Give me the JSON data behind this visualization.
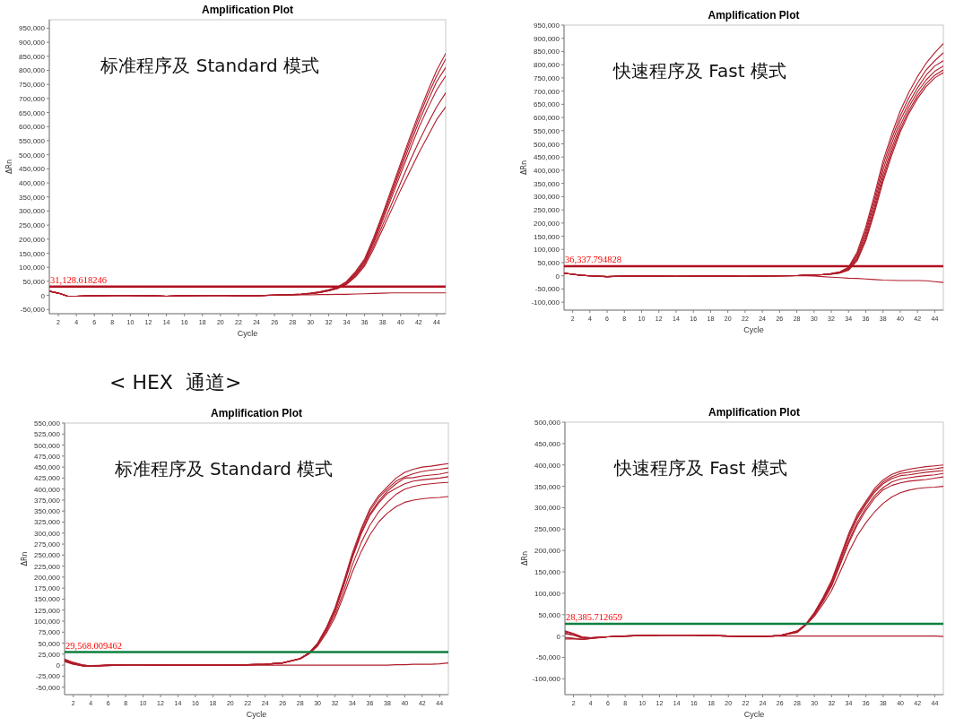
{
  "chart_data": [
    {
      "type": "line",
      "title": "Amplification Plot",
      "xlabel": "Cycle",
      "ylabel": "ΔRn",
      "annotations": [
        "标准程序及 Standard 模式"
      ],
      "xlim": [
        1,
        45
      ],
      "ylim": [
        -65000,
        980000
      ],
      "xticks": [
        2,
        4,
        6,
        8,
        10,
        12,
        14,
        16,
        18,
        20,
        22,
        24,
        26,
        28,
        30,
        32,
        34,
        36,
        38,
        40,
        42,
        44
      ],
      "yticks": [
        {
          "value": -50000,
          "label": "-50,000"
        },
        {
          "value": 0,
          "label": "0"
        },
        {
          "value": 50000,
          "label": "50,000"
        },
        {
          "value": 100000,
          "label": "100,000"
        },
        {
          "value": 150000,
          "label": "150,000"
        },
        {
          "value": 200000,
          "label": "200,000"
        },
        {
          "value": 250000,
          "label": "250,000"
        },
        {
          "value": 300000,
          "label": "300,000"
        },
        {
          "value": 350000,
          "label": "350,000"
        },
        {
          "value": 400000,
          "label": "400,000"
        },
        {
          "value": 450000,
          "label": "450,000"
        },
        {
          "value": 500000,
          "label": "500,000"
        },
        {
          "value": 550000,
          "label": "550,000"
        },
        {
          "value": 600000,
          "label": "600,000"
        },
        {
          "value": 650000,
          "label": "650,000"
        },
        {
          "value": 700000,
          "label": "700,000"
        },
        {
          "value": 750000,
          "label": "750,000"
        },
        {
          "value": 800000,
          "label": "800,000"
        },
        {
          "value": 850000,
          "label": "850,000"
        },
        {
          "value": 900000,
          "label": "900,000"
        },
        {
          "value": 950000,
          "label": "950,000"
        }
      ],
      "ref_lines": [
        {
          "axis": "y",
          "value": 31128.618246,
          "label": "31,128.618246",
          "color": "#b01020"
        }
      ],
      "x": [
        1,
        2,
        3,
        4,
        6,
        8,
        10,
        12,
        14,
        16,
        18,
        20,
        22,
        24,
        26,
        28,
        29,
        30,
        31,
        32,
        33,
        34,
        35,
        36,
        37,
        38,
        39,
        40,
        41,
        42,
        43,
        44,
        45
      ],
      "series": [
        {
          "color": "#b01c2a",
          "values": [
            15000,
            8000,
            -2000,
            -3000,
            -1000,
            0,
            0,
            -1000,
            -3000,
            -1000,
            0,
            0,
            -1000,
            -1000,
            1000,
            3000,
            5000,
            8000,
            13000,
            20000,
            30000,
            50000,
            85000,
            130000,
            205000,
            290000,
            380000,
            470000,
            560000,
            645000,
            725000,
            800000,
            860000
          ]
        },
        {
          "color": "#b01c2a",
          "values": [
            15000,
            8000,
            -2000,
            -3000,
            -1000,
            0,
            0,
            -1000,
            -3000,
            -1000,
            0,
            0,
            -1000,
            -1000,
            1000,
            3000,
            5000,
            8000,
            12000,
            19000,
            28000,
            47000,
            80000,
            125000,
            198000,
            283000,
            370000,
            460000,
            548000,
            632000,
            710000,
            780000,
            840000
          ]
        },
        {
          "color": "#b01c2a",
          "values": [
            15000,
            8000,
            -2000,
            -3000,
            -1000,
            0,
            0,
            -1000,
            -3000,
            -1000,
            0,
            0,
            -1000,
            -1000,
            1000,
            3000,
            4000,
            7000,
            11000,
            18000,
            27000,
            45000,
            77000,
            120000,
            192000,
            275000,
            360000,
            447000,
            533000,
            615000,
            690000,
            760000,
            810000
          ]
        },
        {
          "color": "#b01c2a",
          "values": [
            15000,
            8000,
            -2000,
            -3000,
            -1000,
            0,
            0,
            -1000,
            -3000,
            -1000,
            0,
            0,
            -1000,
            -1000,
            1000,
            3000,
            4000,
            7000,
            11000,
            17000,
            26000,
            43000,
            74000,
            115000,
            185000,
            265000,
            348000,
            432000,
            515000,
            595000,
            665000,
            730000,
            780000
          ]
        },
        {
          "color": "#b01c2a",
          "values": [
            15000,
            8000,
            -2000,
            -3000,
            -1000,
            0,
            0,
            -1000,
            -3000,
            -1000,
            0,
            0,
            -1000,
            -1000,
            1000,
            3000,
            4000,
            6000,
            10000,
            16000,
            25000,
            41000,
            70000,
            110000,
            175000,
            250000,
            325000,
            400000,
            475000,
            545000,
            610000,
            670000,
            720000
          ]
        },
        {
          "color": "#b01c2a",
          "values": [
            15000,
            8000,
            -2000,
            -3000,
            -1000,
            0,
            0,
            -1000,
            -3000,
            -1000,
            0,
            0,
            -1000,
            -1000,
            1000,
            3000,
            4000,
            6000,
            10000,
            16000,
            24000,
            39000,
            66000,
            104000,
            165000,
            235000,
            305000,
            375000,
            440000,
            505000,
            565000,
            625000,
            670000
          ]
        },
        {
          "color": "#b01c2a",
          "values": [
            15000,
            8000,
            -2000,
            -3000,
            -1000,
            0,
            0,
            -1000,
            -3000,
            -1000,
            0,
            0,
            -1000,
            -1000,
            1000,
            1000,
            2000,
            2000,
            3000,
            3000,
            4000,
            4000,
            5000,
            6000,
            7000,
            8000,
            9000,
            9000,
            9000,
            9000,
            9000,
            9000,
            9000
          ]
        }
      ]
    },
    {
      "type": "line",
      "title": "Amplification Plot",
      "xlabel": "Cycle",
      "ylabel": "ΔRn",
      "annotations": [
        "快速程序及 Fast 模式"
      ],
      "xlim": [
        1,
        45
      ],
      "ylim": [
        -130000,
        950000
      ],
      "xticks": [
        2,
        4,
        6,
        8,
        10,
        12,
        14,
        16,
        18,
        20,
        22,
        24,
        26,
        28,
        30,
        32,
        34,
        36,
        38,
        40,
        42,
        44
      ],
      "yticks": [
        {
          "value": -100000,
          "label": "-100,000"
        },
        {
          "value": -50000,
          "label": "-50,000"
        },
        {
          "value": 0,
          "label": "0"
        },
        {
          "value": 50000,
          "label": "50,000"
        },
        {
          "value": 100000,
          "label": "100,000"
        },
        {
          "value": 150000,
          "label": "150,000"
        },
        {
          "value": 200000,
          "label": "200,000"
        },
        {
          "value": 250000,
          "label": "250,000"
        },
        {
          "value": 300000,
          "label": "300,000"
        },
        {
          "value": 350000,
          "label": "350,000"
        },
        {
          "value": 400000,
          "label": "400,000"
        },
        {
          "value": 450000,
          "label": "450,000"
        },
        {
          "value": 500000,
          "label": "500,000"
        },
        {
          "value": 550000,
          "label": "550,000"
        },
        {
          "value": 600000,
          "label": "600,000"
        },
        {
          "value": 650000,
          "label": "650,000"
        },
        {
          "value": 700000,
          "label": "700,000"
        },
        {
          "value": 750000,
          "label": "750,000"
        },
        {
          "value": 800000,
          "label": "800,000"
        },
        {
          "value": 850000,
          "label": "850,000"
        },
        {
          "value": 900000,
          "label": "900,000"
        },
        {
          "value": 950000,
          "label": "950,000"
        }
      ],
      "ref_lines": [
        {
          "axis": "y",
          "value": 36337.794828,
          "label": "36,337.794828",
          "color": "#b01020"
        }
      ],
      "x": [
        1,
        2,
        3,
        4,
        6,
        8,
        10,
        12,
        14,
        16,
        18,
        20,
        22,
        24,
        26,
        28,
        29,
        30,
        31,
        32,
        33,
        34,
        35,
        36,
        37,
        38,
        39,
        40,
        41,
        42,
        43,
        44,
        45
      ],
      "series": [
        {
          "color": "#b01c2a",
          "values": [
            10000,
            6000,
            2000,
            0,
            -3000,
            -1000,
            0,
            -1000,
            -2000,
            -1000,
            0,
            -1000,
            -2000,
            -1000,
            0,
            1000,
            2000,
            3000,
            5000,
            9000,
            15000,
            33000,
            90000,
            185000,
            305000,
            435000,
            535000,
            625000,
            695000,
            755000,
            805000,
            845000,
            880000
          ]
        },
        {
          "color": "#b01c2a",
          "values": [
            10000,
            6000,
            2000,
            0,
            -3000,
            -1000,
            0,
            -1000,
            -2000,
            -1000,
            0,
            -1000,
            -2000,
            -1000,
            0,
            1000,
            2000,
            3000,
            5000,
            8000,
            14000,
            30000,
            82000,
            172000,
            290000,
            418000,
            518000,
            605000,
            675000,
            730000,
            780000,
            815000,
            845000
          ]
        },
        {
          "color": "#b01c2a",
          "values": [
            10000,
            6000,
            2000,
            0,
            -3000,
            -1000,
            0,
            -1000,
            -2000,
            -1000,
            0,
            -1000,
            -2000,
            -1000,
            0,
            1000,
            2000,
            3000,
            5000,
            8000,
            13000,
            28000,
            76000,
            162000,
            275000,
            400000,
            500000,
            588000,
            655000,
            712000,
            760000,
            795000,
            815000
          ]
        },
        {
          "color": "#b01c2a",
          "values": [
            10000,
            6000,
            2000,
            0,
            -3000,
            -1000,
            0,
            -1000,
            -2000,
            -1000,
            0,
            -1000,
            -2000,
            -1000,
            0,
            1000,
            2000,
            3000,
            4000,
            7000,
            12000,
            25000,
            68000,
            150000,
            260000,
            382000,
            482000,
            570000,
            640000,
            697000,
            742000,
            775000,
            795000
          ]
        },
        {
          "color": "#b01c2a",
          "values": [
            10000,
            6000,
            2000,
            0,
            -3000,
            -1000,
            0,
            -1000,
            -2000,
            -1000,
            0,
            -1000,
            -2000,
            -1000,
            0,
            1000,
            2000,
            3000,
            4000,
            7000,
            11000,
            23000,
            62000,
            140000,
            248000,
            368000,
            468000,
            556000,
            626000,
            683000,
            728000,
            760000,
            780000
          ]
        },
        {
          "color": "#b01c2a",
          "values": [
            10000,
            6000,
            2000,
            0,
            -3000,
            -1000,
            0,
            -1000,
            -2000,
            -1000,
            0,
            -1000,
            -2000,
            -1000,
            0,
            1000,
            2000,
            3000,
            4000,
            6000,
            10000,
            21000,
            57000,
            132000,
            238000,
            356000,
            456000,
            545000,
            615000,
            672000,
            717000,
            750000,
            770000
          ]
        },
        {
          "color": "#b01c2a",
          "values": [
            10000,
            6000,
            2000,
            0,
            -3000,
            -1000,
            0,
            -1000,
            -2000,
            -1000,
            0,
            -1000,
            -2000,
            -1000,
            0,
            1000,
            0,
            -1000,
            -3000,
            -5000,
            -7000,
            -9000,
            -10000,
            -12000,
            -14000,
            -16000,
            -17000,
            -18000,
            -18000,
            -18000,
            -19000,
            -22000,
            -25000
          ]
        }
      ]
    },
    {
      "type": "line",
      "title": "Amplification Plot",
      "xlabel": "Cycle",
      "ylabel": "ΔRn",
      "annotations": [
        "标准程序及 Standard 模式",
        "< HEX  通道>"
      ],
      "xlim": [
        1,
        45
      ],
      "ylim": [
        -67000,
        550000
      ],
      "xticks": [
        2,
        4,
        6,
        8,
        10,
        12,
        14,
        16,
        18,
        20,
        22,
        24,
        26,
        28,
        30,
        32,
        34,
        36,
        38,
        40,
        42,
        44
      ],
      "yticks": [
        {
          "value": -50000,
          "label": "-50,000"
        },
        {
          "value": -25000,
          "label": "-25,000"
        },
        {
          "value": 0,
          "label": "0"
        },
        {
          "value": 25000,
          "label": "25,000"
        },
        {
          "value": 50000,
          "label": "50,000"
        },
        {
          "value": 75000,
          "label": "75,000"
        },
        {
          "value": 100000,
          "label": "100,000"
        },
        {
          "value": 125000,
          "label": "125,000"
        },
        {
          "value": 150000,
          "label": "150,000"
        },
        {
          "value": 175000,
          "label": "175,000"
        },
        {
          "value": 200000,
          "label": "200,000"
        },
        {
          "value": 225000,
          "label": "225,000"
        },
        {
          "value": 250000,
          "label": "250,000"
        },
        {
          "value": 275000,
          "label": "275,000"
        },
        {
          "value": 300000,
          "label": "300,000"
        },
        {
          "value": 325000,
          "label": "325,000"
        },
        {
          "value": 350000,
          "label": "350,000"
        },
        {
          "value": 375000,
          "label": "375,000"
        },
        {
          "value": 400000,
          "label": "400,000"
        },
        {
          "value": 425000,
          "label": "425,000"
        },
        {
          "value": 450000,
          "label": "450,000"
        },
        {
          "value": 475000,
          "label": "475,000"
        },
        {
          "value": 500000,
          "label": "500,000"
        },
        {
          "value": 525000,
          "label": "525,000"
        },
        {
          "value": 550000,
          "label": "550,000"
        }
      ],
      "ref_lines": [
        {
          "axis": "y",
          "value": 29568.009462,
          "label": "29,568.009462",
          "color": "#0e8040"
        }
      ],
      "x": [
        1,
        2,
        3,
        4,
        6,
        8,
        10,
        12,
        14,
        16,
        18,
        20,
        22,
        24,
        26,
        28,
        29,
        30,
        31,
        32,
        33,
        34,
        35,
        36,
        37,
        38,
        39,
        40,
        41,
        42,
        43,
        44,
        45
      ],
      "series": [
        {
          "color": "#b01c2a",
          "values": [
            12000,
            5000,
            0,
            -2000,
            0,
            1000,
            1000,
            0,
            0,
            0,
            0,
            0,
            1000,
            2000,
            5000,
            15000,
            28000,
            50000,
            85000,
            130000,
            190000,
            255000,
            310000,
            355000,
            385000,
            405000,
            425000,
            438000,
            445000,
            450000,
            452000,
            455000,
            458000
          ]
        },
        {
          "color": "#b01c2a",
          "values": [
            14000,
            6000,
            1000,
            -2000,
            0,
            1000,
            1000,
            0,
            0,
            0,
            0,
            0,
            1000,
            2000,
            5000,
            15000,
            27000,
            48000,
            82000,
            126000,
            185000,
            250000,
            305000,
            350000,
            380000,
            400000,
            418000,
            428000,
            435000,
            440000,
            443000,
            445000,
            448000
          ]
        },
        {
          "color": "#b01c2a",
          "values": [
            10000,
            4000,
            -1000,
            -3000,
            0,
            1000,
            1000,
            0,
            0,
            0,
            0,
            0,
            1000,
            2000,
            5000,
            15000,
            27000,
            48000,
            81000,
            124000,
            182000,
            246000,
            300000,
            343000,
            372000,
            395000,
            412000,
            425000,
            426000,
            430000,
            432000,
            434000,
            438000
          ]
        },
        {
          "color": "#b01c2a",
          "values": [
            13000,
            6000,
            0,
            -2000,
            -1000,
            1000,
            1000,
            0,
            0,
            0,
            0,
            0,
            1000,
            2000,
            5000,
            15000,
            27000,
            47000,
            80000,
            122000,
            180000,
            244000,
            298000,
            340000,
            368000,
            390000,
            402000,
            412000,
            418000,
            421000,
            423000,
            425000,
            428000
          ]
        },
        {
          "color": "#b01c2a",
          "values": [
            11000,
            4000,
            -1000,
            -2000,
            0,
            1000,
            1000,
            0,
            0,
            0,
            0,
            0,
            1000,
            2000,
            5000,
            14000,
            26000,
            45000,
            76000,
            115000,
            168000,
            228000,
            278000,
            318000,
            348000,
            370000,
            388000,
            400000,
            406000,
            410000,
            412000,
            414000,
            415000
          ]
        },
        {
          "color": "#b01c2a",
          "values": [
            9000,
            3000,
            -2000,
            -3000,
            -1000,
            1000,
            1000,
            0,
            0,
            0,
            0,
            0,
            1000,
            2000,
            5000,
            14000,
            25000,
            43000,
            72000,
            108000,
            158000,
            212000,
            258000,
            296000,
            325000,
            345000,
            360000,
            370000,
            375000,
            378000,
            380000,
            381000,
            383000
          ]
        },
        {
          "color": "#b01c2a",
          "values": [
            8000,
            2000,
            -1000,
            -1000,
            0,
            0,
            0,
            0,
            0,
            0,
            0,
            0,
            0,
            0,
            0,
            0,
            0,
            0,
            0,
            0,
            0,
            0,
            0,
            0,
            0,
            0,
            1000,
            1000,
            2000,
            2000,
            2000,
            3000,
            5000
          ]
        }
      ]
    },
    {
      "type": "line",
      "title": "Amplification Plot",
      "xlabel": "Cycle",
      "ylabel": "ΔRn",
      "annotations": [
        "快速程序及 Fast 模式"
      ],
      "xlim": [
        1,
        45
      ],
      "ylim": [
        -137000,
        500000
      ],
      "xticks": [
        2,
        4,
        6,
        8,
        10,
        12,
        14,
        16,
        18,
        20,
        22,
        24,
        26,
        28,
        30,
        32,
        34,
        36,
        38,
        40,
        42,
        44
      ],
      "yticks": [
        {
          "value": -100000,
          "label": "-100,000"
        },
        {
          "value": -50000,
          "label": "-50,000"
        },
        {
          "value": 0,
          "label": "0"
        },
        {
          "value": 50000,
          "label": "50,000"
        },
        {
          "value": 100000,
          "label": "100,000"
        },
        {
          "value": 150000,
          "label": "150,000"
        },
        {
          "value": 200000,
          "label": "200,000"
        },
        {
          "value": 250000,
          "label": "250,000"
        },
        {
          "value": 300000,
          "label": "300,000"
        },
        {
          "value": 350000,
          "label": "350,000"
        },
        {
          "value": 400000,
          "label": "400,000"
        },
        {
          "value": 450000,
          "label": "450,000"
        },
        {
          "value": 500000,
          "label": "500,000"
        }
      ],
      "ref_lines": [
        {
          "axis": "y",
          "value": 28385.712659,
          "label": "28,385.712659",
          "color": "#0e8040"
        }
      ],
      "x": [
        1,
        2,
        3,
        4,
        6,
        8,
        10,
        12,
        14,
        16,
        18,
        20,
        22,
        24,
        26,
        28,
        29,
        30,
        31,
        32,
        33,
        34,
        35,
        36,
        37,
        38,
        39,
        40,
        41,
        42,
        43,
        44,
        45
      ],
      "series": [
        {
          "color": "#b01c2a",
          "values": [
            5000,
            2000,
            -5000,
            -4000,
            -2000,
            0,
            1000,
            2000,
            2000,
            2000,
            1000,
            0,
            -1000,
            -1000,
            1000,
            12000,
            28000,
            55000,
            90000,
            130000,
            185000,
            240000,
            285000,
            315000,
            345000,
            365000,
            378000,
            385000,
            390000,
            393000,
            396000,
            398000,
            400000
          ]
        },
        {
          "color": "#b01c2a",
          "values": [
            7000,
            3000,
            -4000,
            -4000,
            -2000,
            0,
            1000,
            2000,
            2000,
            2000,
            1000,
            0,
            -1000,
            -1000,
            1000,
            11000,
            27000,
            53000,
            87000,
            126000,
            180000,
            235000,
            280000,
            312000,
            340000,
            360000,
            372000,
            380000,
            383000,
            386000,
            389000,
            391000,
            394000
          ]
        },
        {
          "color": "#b01c2a",
          "values": [
            10000,
            5000,
            -3000,
            -4000,
            -2000,
            0,
            1000,
            2000,
            2000,
            2000,
            1000,
            0,
            -1000,
            -1000,
            1000,
            10000,
            27000,
            52000,
            85000,
            123000,
            176000,
            230000,
            275000,
            308000,
            336000,
            356000,
            368000,
            375000,
            377000,
            380000,
            383000,
            385000,
            387000
          ]
        },
        {
          "color": "#b01c2a",
          "values": [
            12000,
            6000,
            -2000,
            -4000,
            -2000,
            0,
            1000,
            2000,
            2000,
            2000,
            1000,
            0,
            -1000,
            -1000,
            1000,
            10000,
            26000,
            50000,
            82000,
            119000,
            170000,
            222000,
            266000,
            300000,
            328000,
            347000,
            360000,
            367000,
            370000,
            373000,
            375000,
            377000,
            380000
          ]
        },
        {
          "color": "#b01c2a",
          "values": [
            -3000,
            -5000,
            -8000,
            -6000,
            -2000,
            0,
            1000,
            2000,
            2000,
            2000,
            1000,
            0,
            -1000,
            -1000,
            1000,
            9000,
            26000,
            49000,
            80000,
            116000,
            166000,
            217000,
            260000,
            294000,
            322000,
            342000,
            352000,
            358000,
            362000,
            364000,
            366000,
            369000,
            372000
          ]
        },
        {
          "color": "#b01c2a",
          "values": [
            -5000,
            -6000,
            -8000,
            -6000,
            -2000,
            0,
            1000,
            2000,
            2000,
            2000,
            1000,
            0,
            -1000,
            -1000,
            1000,
            8000,
            25000,
            46000,
            74000,
            106000,
            150000,
            196000,
            235000,
            265000,
            290000,
            310000,
            325000,
            335000,
            341000,
            345000,
            347000,
            348000,
            350000
          ]
        },
        {
          "color": "#b01c2a",
          "values": [
            -7000,
            -7000,
            -7000,
            -5000,
            -2000,
            0,
            1000,
            2000,
            2000,
            2000,
            1000,
            0,
            0,
            0,
            0,
            0,
            0,
            0,
            0,
            0,
            0,
            0,
            0,
            0,
            0,
            0,
            0,
            0,
            0,
            0,
            0,
            0,
            -1000
          ]
        }
      ]
    }
  ]
}
